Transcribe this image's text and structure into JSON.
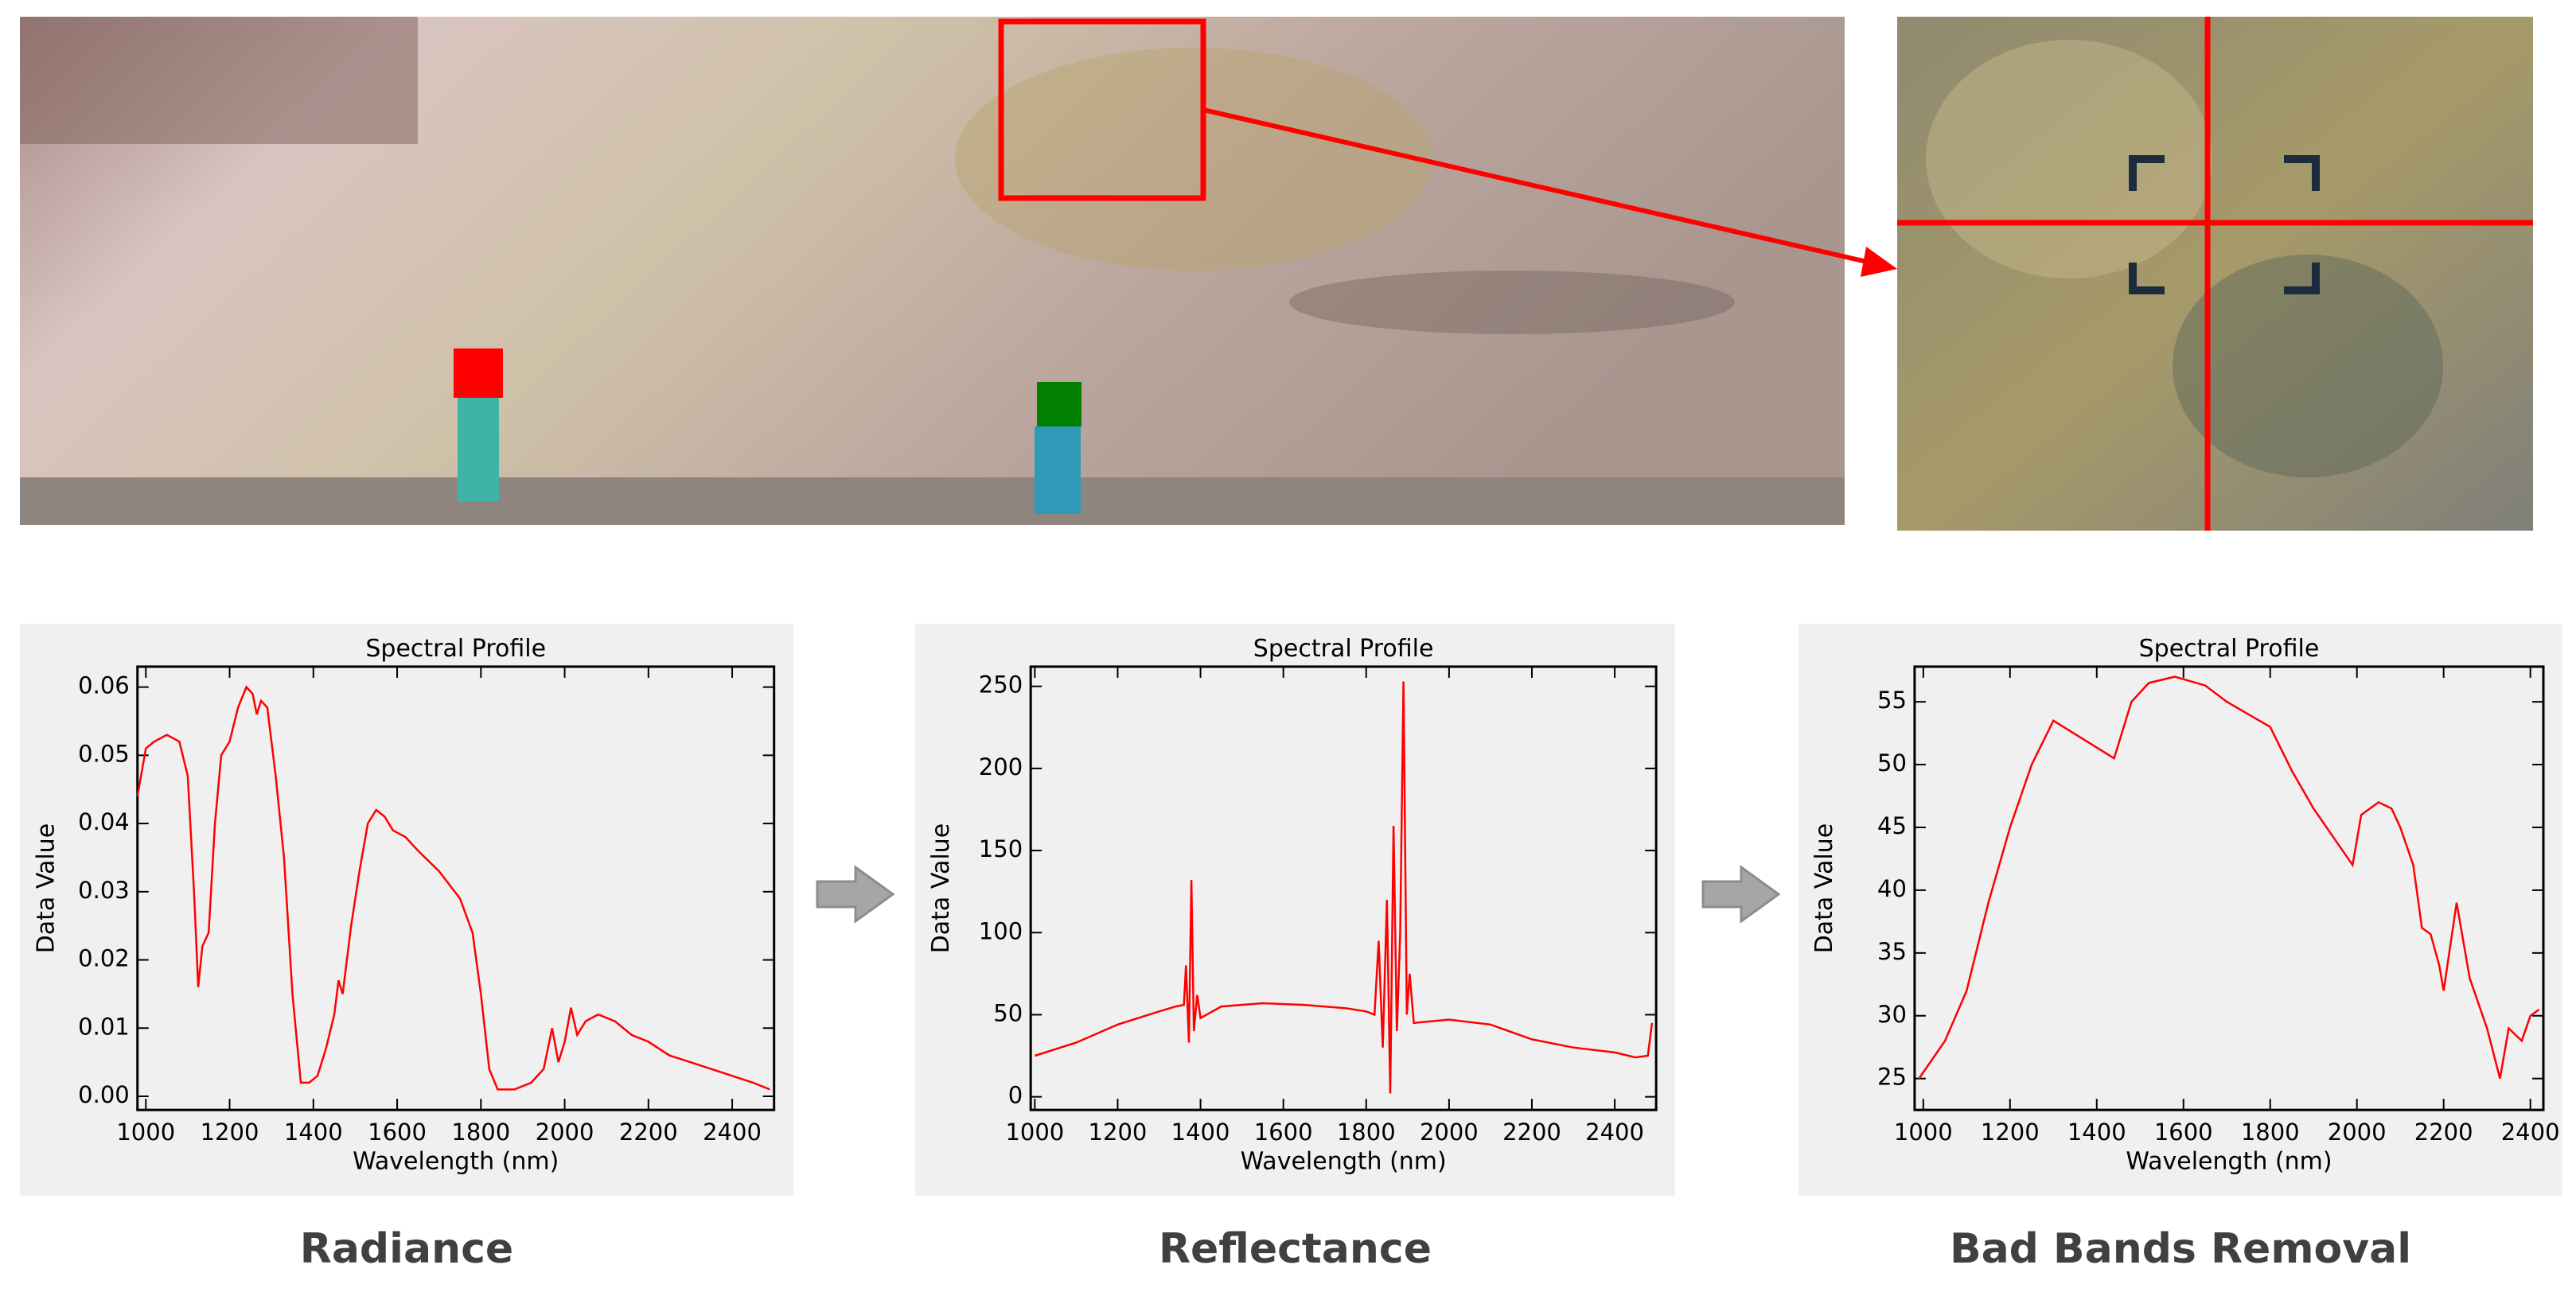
{
  "chart_data": [
    {
      "type": "line",
      "title": "Spectral Profile",
      "x_label": "Wavelength (nm)",
      "y_label": "Data Value",
      "caption": "Radiance",
      "x": [
        980,
        1000,
        1020,
        1050,
        1080,
        1100,
        1115,
        1125,
        1135,
        1150,
        1165,
        1180,
        1200,
        1220,
        1240,
        1255,
        1265,
        1275,
        1290,
        1310,
        1330,
        1350,
        1370,
        1390,
        1410,
        1430,
        1450,
        1460,
        1470,
        1490,
        1510,
        1530,
        1550,
        1570,
        1590,
        1620,
        1650,
        1700,
        1750,
        1780,
        1800,
        1820,
        1840,
        1880,
        1920,
        1950,
        1970,
        1985,
        2000,
        2015,
        2030,
        2050,
        2080,
        2120,
        2160,
        2200,
        2250,
        2300,
        2350,
        2400,
        2450,
        2490
      ],
      "series": [
        {
          "color": "#ff0000",
          "values": [
            0.044,
            0.051,
            0.052,
            0.053,
            0.052,
            0.047,
            0.03,
            0.016,
            0.022,
            0.024,
            0.04,
            0.05,
            0.052,
            0.057,
            0.06,
            0.059,
            0.056,
            0.058,
            0.057,
            0.047,
            0.035,
            0.015,
            0.002,
            0.002,
            0.003,
            0.007,
            0.012,
            0.017,
            0.015,
            0.025,
            0.033,
            0.04,
            0.042,
            0.041,
            0.039,
            0.038,
            0.036,
            0.033,
            0.029,
            0.024,
            0.015,
            0.004,
            0.001,
            0.001,
            0.002,
            0.004,
            0.01,
            0.005,
            0.008,
            0.013,
            0.009,
            0.011,
            0.012,
            0.011,
            0.009,
            0.008,
            0.006,
            0.005,
            0.004,
            0.003,
            0.002,
            0.001
          ]
        }
      ],
      "xlim": [
        980,
        2500
      ],
      "xticks": [
        1000,
        1200,
        1400,
        1600,
        1800,
        2000,
        2200,
        2400
      ],
      "ylim": [
        -0.002,
        0.063
      ],
      "yticks": [
        {
          "value": 0,
          "label": "0.00"
        },
        0.01,
        0.02,
        0.03,
        0.04,
        0.05,
        0.06
      ]
    },
    {
      "type": "line",
      "title": "Spectral Profile",
      "x_label": "Wavelength (nm)",
      "y_label": "Data Value",
      "caption": "Reflectance",
      "x": [
        1000,
        1100,
        1200,
        1300,
        1340,
        1360,
        1365,
        1372,
        1378,
        1384,
        1392,
        1400,
        1450,
        1550,
        1650,
        1750,
        1800,
        1820,
        1830,
        1840,
        1850,
        1858,
        1866,
        1874,
        1882,
        1890,
        1898,
        1905,
        1915,
        2000,
        2100,
        2200,
        2300,
        2400,
        2450,
        2480,
        2490
      ],
      "series": [
        {
          "color": "#ff0000",
          "values": [
            25,
            33,
            44,
            52,
            55,
            56,
            80,
            33,
            132,
            40,
            62,
            48,
            55,
            57,
            56,
            54,
            52,
            50,
            95,
            30,
            120,
            2,
            165,
            40,
            100,
            253,
            50,
            75,
            45,
            47,
            44,
            35,
            30,
            27,
            24,
            25,
            45
          ]
        }
      ],
      "xlim": [
        990,
        2500
      ],
      "xticks": [
        1000,
        1200,
        1400,
        1600,
        1800,
        2000,
        2200,
        2400
      ],
      "ylim": [
        -8,
        262
      ],
      "yticks": [
        0,
        50,
        100,
        150,
        200,
        250
      ]
    },
    {
      "type": "line",
      "title": "Spectral Profile",
      "x_label": "Wavelength (nm)",
      "y_label": "Data Value",
      "caption": "Bad Bands Removal",
      "x": [
        990,
        1050,
        1100,
        1150,
        1200,
        1250,
        1300,
        1440,
        1480,
        1520,
        1580,
        1650,
        1700,
        1750,
        1800,
        1850,
        1900,
        1950,
        1990,
        2010,
        2050,
        2080,
        2100,
        2130,
        2150,
        2170,
        2190,
        2200,
        2230,
        2260,
        2300,
        2330,
        2350,
        2380,
        2400,
        2420
      ],
      "series": [
        {
          "color": "#ff0000",
          "values": [
            25,
            28,
            32,
            39,
            45,
            50,
            53.5,
            50.5,
            55,
            56.5,
            57,
            56.3,
            55,
            54,
            53,
            49.5,
            46.5,
            44,
            42,
            46,
            47,
            46.5,
            45,
            42,
            37,
            36.5,
            34,
            32,
            39,
            33,
            29,
            25,
            29,
            28,
            30,
            30.5
          ]
        }
      ],
      "xlim": [
        980,
        2430
      ],
      "xticks": [
        1000,
        1200,
        1400,
        1600,
        1800,
        2000,
        2200,
        2400
      ],
      "ylim": [
        22.5,
        57.8
      ],
      "yticks": [
        25,
        30,
        35,
        40,
        45,
        50,
        55
      ]
    }
  ]
}
